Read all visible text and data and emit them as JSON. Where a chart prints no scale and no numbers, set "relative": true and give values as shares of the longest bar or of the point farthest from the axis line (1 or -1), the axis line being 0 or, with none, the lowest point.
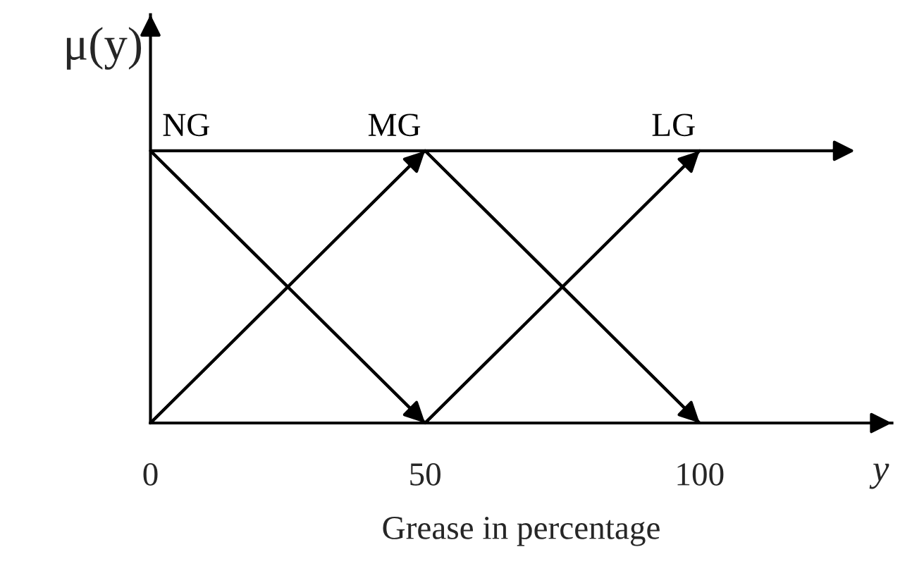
{
  "chart_data": {
    "type": "line",
    "relative": true,
    "ylabel": "μ(y)",
    "xlabel": "Grease in percentage",
    "annotations": [
      "y"
    ],
    "xlim": [
      0,
      135
    ],
    "xticks": [
      0,
      50,
      100
    ],
    "series": [
      {
        "name": "NG",
        "color": "#000000",
        "x": [
          0,
          50
        ],
        "values": [
          1,
          0
        ]
      },
      {
        "name": "MG",
        "color": "#000000",
        "x": [
          0,
          50,
          100
        ],
        "values": [
          0,
          1,
          0
        ]
      },
      {
        "name": "LG",
        "color": "#000000",
        "x": [
          50,
          100
        ],
        "values": [
          0,
          1
        ]
      }
    ],
    "ref_lines": [
      {
        "axis": "y",
        "value": 1,
        "color": "#000000"
      }
    ],
    "grid": false,
    "legend": false,
    "marker": "none",
    "line_style": "solid"
  }
}
